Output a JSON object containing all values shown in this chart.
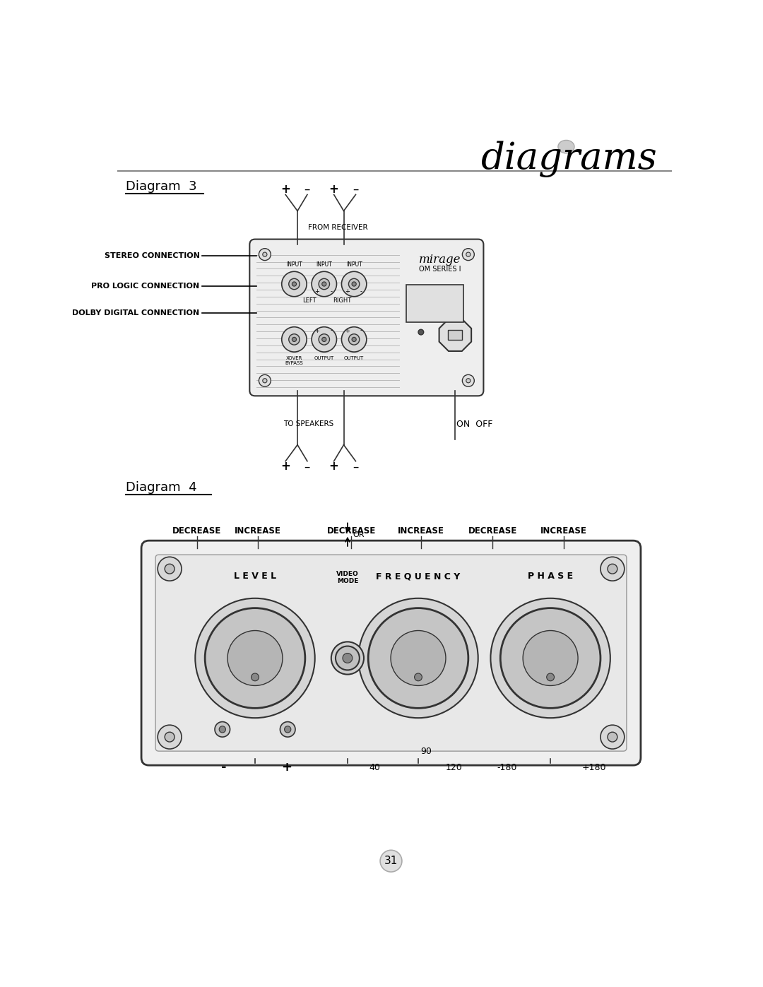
{
  "page_title": "diagrams",
  "diagram3_title": "Diagram  3",
  "diagram4_title": "Diagram  4",
  "bg_color": "#ffffff",
  "line_color": "#333333",
  "text_color": "#000000",
  "page_number": "31",
  "stereo_connection_label": "STEREO CONNECTION",
  "pro_logic_label": "PRO LOGIC CONNECTION",
  "dolby_label": "DOLBY DIGITAL CONNECTION",
  "from_receiver_label": "FROM RECEIVER",
  "to_speakers_label": "TO SPEAKERS",
  "on_off_label": "ON  OFF",
  "decrease_label": "DECREASE",
  "increase_label": "INCREASE",
  "level_label": "L E V E L",
  "video_mode_label": "VIDEO\nMODE",
  "frequency_label": "F R E Q U E N C Y",
  "phase_label": "P H A S E",
  "or_label": "OR",
  "label_40": "40",
  "label_120": "120",
  "label_neg180": "-180",
  "label_pos180": "+180",
  "label_90": "90",
  "label_minus": "-",
  "label_plus": "+",
  "input_label": "INPUT",
  "left_label": "LEFT",
  "right_label": "RIGHT",
  "output_label": "OUTPUT",
  "xover_bypass_label": "XOVER\nBYPASS",
  "mirage_logo": "mirage",
  "om_series": "OM SERIES I"
}
